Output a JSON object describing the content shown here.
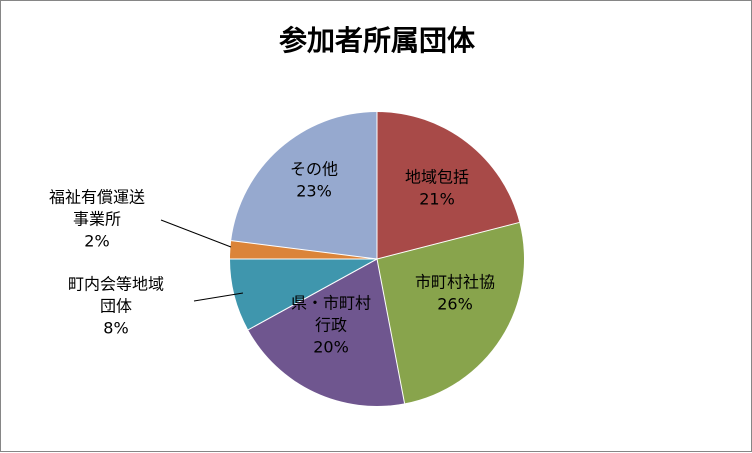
{
  "chart_data": {
    "type": "pie",
    "title": "参加者所属団体",
    "slices": [
      {
        "label_lines": [
          "地域包括"
        ],
        "pct_text": "21%",
        "value": 21,
        "color": "#A84A48"
      },
      {
        "label_lines": [
          "市町村社協"
        ],
        "pct_text": "26%",
        "value": 26,
        "color": "#88A44C"
      },
      {
        "label_lines": [
          "県・市町村",
          "行政"
        ],
        "pct_text": "20%",
        "value": 20,
        "color": "#6F568F"
      },
      {
        "label_lines": [
          "町内会等地域",
          "団体"
        ],
        "pct_text": "8%",
        "value": 8,
        "color": "#3F96AD"
      },
      {
        "label_lines": [
          "福祉有償運送",
          "事業所"
        ],
        "pct_text": "2%",
        "value": 2,
        "color": "#DB8439"
      },
      {
        "label_lines": [
          "その他"
        ],
        "pct_text": "23%",
        "value": 23,
        "color": "#96A9CF"
      }
    ]
  }
}
